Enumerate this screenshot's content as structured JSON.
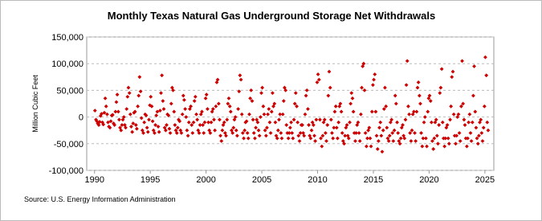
{
  "chart_data": {
    "type": "scatter",
    "title": "Monthly Texas Natural Gas Underground Storage Net Withdrawals",
    "y_label": "Million Cubic Feet",
    "source": "Source: U.S. Energy Information Administration",
    "color": "#cc0000",
    "grid": true,
    "xlim": [
      1989.3,
      2025.8
    ],
    "xticks": [
      1990,
      1995,
      2000,
      2005,
      2010,
      2015,
      2020,
      2025
    ],
    "ylim": [
      -100000,
      150000
    ],
    "yticks": [
      {
        "value": -100000,
        "label": "-100,000"
      },
      {
        "value": -50000,
        "label": "-50,000"
      },
      {
        "value": 0,
        "label": "0"
      },
      {
        "value": 50000,
        "label": "50,000"
      },
      {
        "value": 100000,
        "label": "100,000"
      },
      {
        "value": 150000,
        "label": "150,000"
      }
    ],
    "x": [
      1990.04,
      1990.13,
      1990.21,
      1990.29,
      1990.38,
      1990.46,
      1990.54,
      1990.63,
      1990.71,
      1990.79,
      1990.88,
      1990.96,
      1991.04,
      1991.13,
      1991.21,
      1991.29,
      1991.38,
      1991.46,
      1991.54,
      1991.63,
      1991.71,
      1991.79,
      1991.88,
      1991.96,
      1992.04,
      1992.13,
      1992.21,
      1992.29,
      1992.38,
      1992.46,
      1992.54,
      1992.63,
      1992.71,
      1992.79,
      1992.88,
      1992.96,
      1993.04,
      1993.13,
      1993.21,
      1993.29,
      1993.38,
      1993.46,
      1993.54,
      1993.63,
      1993.71,
      1993.79,
      1993.88,
      1993.96,
      1994.04,
      1994.13,
      1994.21,
      1994.29,
      1994.38,
      1994.46,
      1994.54,
      1994.63,
      1994.71,
      1994.79,
      1994.88,
      1994.96,
      1995.04,
      1995.13,
      1995.21,
      1995.29,
      1995.38,
      1995.46,
      1995.54,
      1995.63,
      1995.71,
      1995.79,
      1995.88,
      1995.96,
      1996.04,
      1996.13,
      1996.21,
      1996.29,
      1996.38,
      1996.46,
      1996.54,
      1996.63,
      1996.71,
      1996.79,
      1996.88,
      1996.96,
      1997.04,
      1997.13,
      1997.21,
      1997.29,
      1997.38,
      1997.46,
      1997.54,
      1997.63,
      1997.71,
      1997.79,
      1997.88,
      1997.96,
      1998.04,
      1998.13,
      1998.21,
      1998.29,
      1998.38,
      1998.46,
      1998.54,
      1998.63,
      1998.71,
      1998.79,
      1998.88,
      1998.96,
      1999.04,
      1999.13,
      1999.21,
      1999.29,
      1999.38,
      1999.46,
      1999.54,
      1999.63,
      1999.71,
      1999.79,
      1999.88,
      1999.96,
      2000.04,
      2000.13,
      2000.21,
      2000.29,
      2000.38,
      2000.46,
      2000.54,
      2000.63,
      2000.71,
      2000.79,
      2000.88,
      2000.96,
      2001.04,
      2001.13,
      2001.21,
      2001.29,
      2001.38,
      2001.46,
      2001.54,
      2001.63,
      2001.71,
      2001.79,
      2001.88,
      2001.96,
      2002.04,
      2002.13,
      2002.21,
      2002.29,
      2002.38,
      2002.46,
      2002.54,
      2002.63,
      2002.71,
      2002.79,
      2002.88,
      2002.96,
      2003.04,
      2003.13,
      2003.21,
      2003.29,
      2003.38,
      2003.46,
      2003.54,
      2003.63,
      2003.71,
      2003.79,
      2003.88,
      2003.96,
      2004.04,
      2004.13,
      2004.21,
      2004.29,
      2004.38,
      2004.46,
      2004.54,
      2004.63,
      2004.71,
      2004.79,
      2004.88,
      2004.96,
      2005.04,
      2005.13,
      2005.21,
      2005.29,
      2005.38,
      2005.46,
      2005.54,
      2005.63,
      2005.71,
      2005.79,
      2005.88,
      2005.96,
      2006.04,
      2006.13,
      2006.21,
      2006.29,
      2006.38,
      2006.46,
      2006.54,
      2006.63,
      2006.71,
      2006.79,
      2006.88,
      2006.96,
      2007.04,
      2007.13,
      2007.21,
      2007.29,
      2007.38,
      2007.46,
      2007.54,
      2007.63,
      2007.71,
      2007.79,
      2007.88,
      2007.96,
      2008.04,
      2008.13,
      2008.21,
      2008.29,
      2008.38,
      2008.46,
      2008.54,
      2008.63,
      2008.71,
      2008.79,
      2008.88,
      2008.96,
      2009.04,
      2009.13,
      2009.21,
      2009.29,
      2009.38,
      2009.46,
      2009.54,
      2009.63,
      2009.71,
      2009.79,
      2009.88,
      2009.96,
      2010.04,
      2010.13,
      2010.21,
      2010.29,
      2010.38,
      2010.46,
      2010.54,
      2010.63,
      2010.71,
      2010.79,
      2010.88,
      2010.96,
      2011.04,
      2011.13,
      2011.21,
      2011.29,
      2011.38,
      2011.46,
      2011.54,
      2011.63,
      2011.71,
      2011.79,
      2011.88,
      2011.96,
      2012.04,
      2012.13,
      2012.21,
      2012.29,
      2012.38,
      2012.46,
      2012.54,
      2012.63,
      2012.71,
      2012.79,
      2012.88,
      2012.96,
      2013.04,
      2013.13,
      2013.21,
      2013.29,
      2013.38,
      2013.46,
      2013.54,
      2013.63,
      2013.71,
      2013.79,
      2013.88,
      2013.96,
      2014.04,
      2014.13,
      2014.21,
      2014.29,
      2014.38,
      2014.46,
      2014.54,
      2014.63,
      2014.71,
      2014.79,
      2014.88,
      2014.96,
      2015.04,
      2015.13,
      2015.21,
      2015.29,
      2015.38,
      2015.46,
      2015.54,
      2015.63,
      2015.71,
      2015.79,
      2015.88,
      2015.96,
      2016.04,
      2016.13,
      2016.21,
      2016.29,
      2016.38,
      2016.46,
      2016.54,
      2016.63,
      2016.71,
      2016.79,
      2016.88,
      2016.96,
      2017.04,
      2017.13,
      2017.21,
      2017.29,
      2017.38,
      2017.46,
      2017.54,
      2017.63,
      2017.71,
      2017.79,
      2017.88,
      2017.96,
      2018.04,
      2018.13,
      2018.21,
      2018.29,
      2018.38,
      2018.46,
      2018.54,
      2018.63,
      2018.71,
      2018.79,
      2018.88,
      2018.96,
      2019.04,
      2019.13,
      2019.21,
      2019.29,
      2019.38,
      2019.46,
      2019.54,
      2019.63,
      2019.71,
      2019.79,
      2019.88,
      2019.96,
      2020.04,
      2020.13,
      2020.21,
      2020.29,
      2020.38,
      2020.46,
      2020.54,
      2020.63,
      2020.71,
      2020.79,
      2020.88,
      2020.96,
      2021.04,
      2021.13,
      2021.21,
      2021.29,
      2021.38,
      2021.46,
      2021.54,
      2021.63,
      2021.71,
      2021.79,
      2021.88,
      2021.96,
      2022.04,
      2022.13,
      2022.21,
      2022.29,
      2022.38,
      2022.46,
      2022.54,
      2022.63,
      2022.71,
      2022.79,
      2022.88,
      2022.96,
      2023.04,
      2023.13,
      2023.21,
      2023.29,
      2023.38,
      2023.46,
      2023.54,
      2023.63,
      2023.71,
      2023.79,
      2023.88,
      2023.96,
      2024.04,
      2024.13,
      2024.21,
      2024.29,
      2024.38,
      2024.46,
      2024.54,
      2024.63,
      2024.71,
      2024.79,
      2024.88,
      2024.96,
      2025.04,
      2025.13,
      2025.21,
      2025.29
    ],
    "values": [
      12000,
      -5000,
      -8000,
      -12000,
      -15000,
      -9000,
      2000,
      6000,
      -10000,
      -14000,
      8000,
      35000,
      20000,
      5000,
      -10000,
      -18000,
      -20000,
      -8000,
      3000,
      4000,
      -12000,
      -15000,
      10000,
      28000,
      42000,
      10000,
      -5000,
      -20000,
      -25000,
      -15000,
      -5000,
      0,
      -15000,
      -20000,
      15000,
      38000,
      55000,
      45000,
      5000,
      -18000,
      -28000,
      -12000,
      8000,
      10000,
      -15000,
      -22000,
      20000,
      40000,
      75000,
      48000,
      -2000,
      -25000,
      -30000,
      -10000,
      5000,
      3000,
      -20000,
      -28000,
      -5000,
      22000,
      38000,
      20000,
      -8000,
      -25000,
      -30000,
      -15000,
      3000,
      10000,
      -18000,
      -28000,
      12000,
      45000,
      78000,
      30000,
      15000,
      -20000,
      -25000,
      -15000,
      5000,
      3000,
      -22000,
      -30000,
      25000,
      55000,
      50000,
      10000,
      -15000,
      -25000,
      -30000,
      -20000,
      -5000,
      -8000,
      -25000,
      -30000,
      5000,
      40000,
      32000,
      15000,
      0,
      -25000,
      -35000,
      -10000,
      15000,
      20000,
      -15000,
      -30000,
      -10000,
      30000,
      38000,
      5000,
      -5000,
      -25000,
      -30000,
      -15000,
      5000,
      10000,
      -15000,
      -30000,
      -10000,
      35000,
      42000,
      15000,
      -10000,
      -25000,
      -30000,
      -10000,
      10000,
      15000,
      -5000,
      -25000,
      20000,
      65000,
      70000,
      25000,
      -5000,
      -35000,
      -45000,
      -25000,
      -15000,
      -10000,
      -30000,
      -35000,
      -5000,
      25000,
      35000,
      20000,
      10000,
      -25000,
      -30000,
      -20000,
      -5000,
      0,
      -25000,
      -35000,
      15000,
      48000,
      78000,
      70000,
      5000,
      -30000,
      -40000,
      -25000,
      -10000,
      -8000,
      -30000,
      -40000,
      5000,
      35000,
      50000,
      30000,
      -5000,
      -30000,
      -40000,
      -20000,
      -5000,
      -10000,
      -25000,
      -35000,
      0,
      45000,
      55000,
      20000,
      5000,
      -25000,
      -35000,
      -20000,
      5000,
      15000,
      -10000,
      -30000,
      10000,
      45000,
      20000,
      25000,
      -10000,
      -35000,
      -40000,
      -25000,
      -5000,
      5000,
      -30000,
      -40000,
      5000,
      30000,
      55000,
      50000,
      -15000,
      -30000,
      -40000,
      -30000,
      -20000,
      -10000,
      -30000,
      -40000,
      -5000,
      25000,
      45000,
      20000,
      -10000,
      -35000,
      -45000,
      -30000,
      -15000,
      -15000,
      -30000,
      -35000,
      5000,
      40000,
      50000,
      15000,
      -15000,
      -35000,
      -40000,
      -25000,
      -10000,
      -15000,
      -35000,
      -45000,
      -5000,
      65000,
      80000,
      70000,
      -5000,
      -40000,
      -55000,
      -35000,
      -10000,
      -5000,
      -30000,
      -45000,
      -15000,
      40000,
      85000,
      55000,
      -5000,
      -30000,
      -40000,
      -20000,
      10000,
      20000,
      -20000,
      -40000,
      -10000,
      20000,
      25000,
      10000,
      -30000,
      -45000,
      -50000,
      -35000,
      -20000,
      -15000,
      -35000,
      -40000,
      -10000,
      25000,
      45000,
      35000,
      10000,
      -30000,
      -45000,
      -30000,
      -15000,
      -10000,
      -30000,
      -45000,
      5000,
      55000,
      95000,
      100000,
      50000,
      -30000,
      -55000,
      -40000,
      -25000,
      -20000,
      -40000,
      -55000,
      10000,
      60000,
      70000,
      80000,
      10000,
      -35000,
      -60000,
      -45000,
      -20000,
      -10000,
      -35000,
      -65000,
      -25000,
      15000,
      55000,
      20000,
      -20000,
      -40000,
      -45000,
      -35000,
      -10000,
      -5000,
      -30000,
      -45000,
      -25000,
      40000,
      25000,
      -10000,
      -30000,
      -45000,
      -50000,
      -40000,
      -20000,
      -15000,
      -35000,
      -40000,
      -5000,
      60000,
      105000,
      20000,
      5000,
      -30000,
      -45000,
      -25000,
      5000,
      10000,
      -30000,
      -45000,
      10000,
      55000,
      65000,
      40000,
      25000,
      -30000,
      -55000,
      -40000,
      -10000,
      0,
      -40000,
      -55000,
      10000,
      35000,
      40000,
      30000,
      -10000,
      -45000,
      -60000,
      -40000,
      -10000,
      -5000,
      -35000,
      -50000,
      -15000,
      45000,
      55000,
      90000,
      -10000,
      -40000,
      -55000,
      -40000,
      -20000,
      -15000,
      -40000,
      -50000,
      -5000,
      20000,
      75000,
      85000,
      5000,
      -35000,
      -50000,
      -35000,
      0,
      5000,
      -30000,
      -45000,
      20000,
      105000,
      25000,
      -5000,
      -15000,
      -40000,
      -55000,
      -40000,
      -10000,
      5000,
      -30000,
      -45000,
      -10000,
      40000,
      95000,
      10000,
      -20000,
      -40000,
      -50000,
      -35000,
      -10000,
      -5000,
      -30000,
      -45000,
      -20000,
      20000,
      112000,
      78000,
      -10000,
      -25000
    ]
  }
}
